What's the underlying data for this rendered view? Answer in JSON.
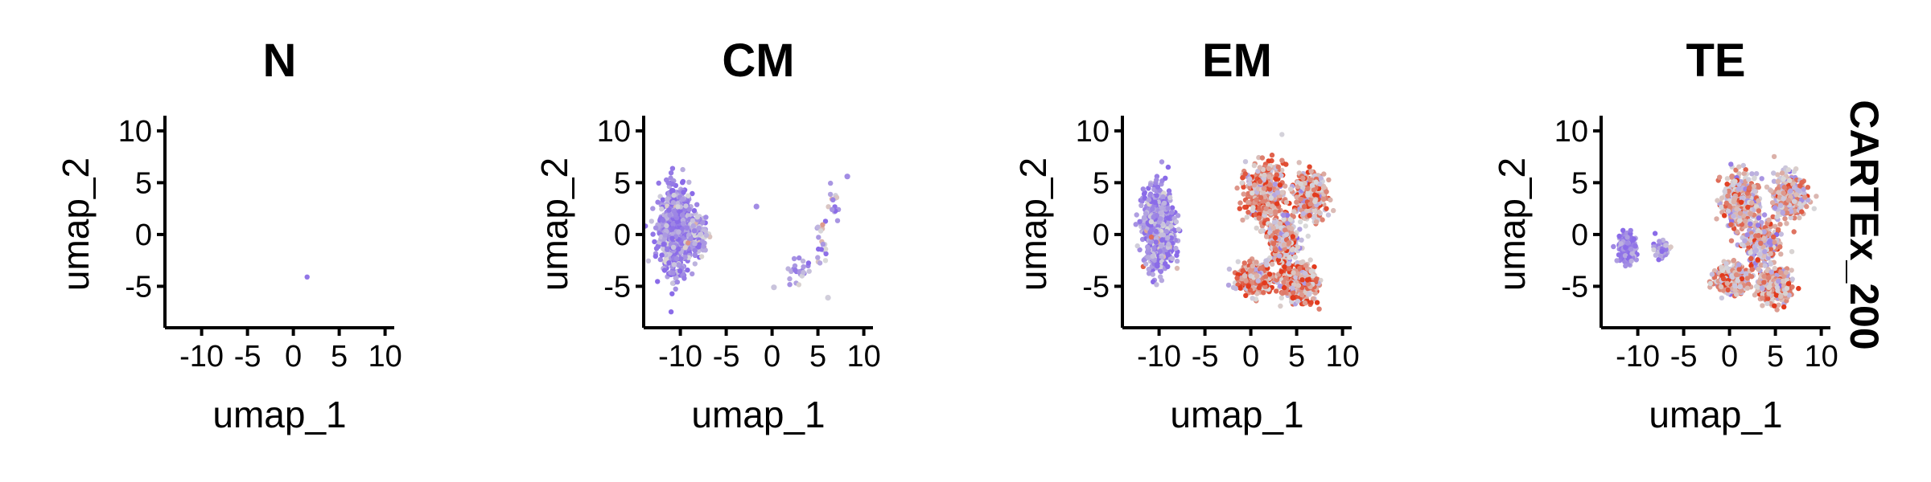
{
  "figure": {
    "strip_label": "CARTEx_200"
  },
  "colors": {
    "low": "#8a6be8",
    "mid": "#d9d9d9",
    "high": "#e23a1d"
  },
  "chart_data": [
    {
      "type": "scatter",
      "title": "N",
      "xlabel": "umap_1",
      "ylabel": "umap_2",
      "xlim": [
        -14,
        11
      ],
      "ylim": [
        -9,
        11
      ],
      "xticks": [
        -10,
        -5,
        0,
        5,
        10
      ],
      "yticks": [
        -5,
        0,
        5,
        10
      ],
      "xtick_labels": [
        "-10",
        "-5",
        "0",
        "5",
        "10"
      ],
      "ytick_labels": [
        "-5",
        "0",
        "5",
        "10"
      ],
      "color_scale": "CARTEx_200 score (low = purple, mid = grey, high = red)",
      "clusters": [
        {
          "cx": 1.5,
          "cy": -4.1,
          "sx": 0,
          "sy": 0,
          "n": 1,
          "mean": -0.9,
          "spread": 0
        }
      ],
      "points": []
    },
    {
      "type": "scatter",
      "title": "CM",
      "xlabel": "umap_1",
      "ylabel": "umap_2",
      "xlim": [
        -14,
        11
      ],
      "ylim": [
        -9,
        11
      ],
      "xticks": [
        -10,
        -5,
        0,
        5,
        10
      ],
      "yticks": [
        -5,
        0,
        5,
        10
      ],
      "xtick_labels": [
        "-10",
        "-5",
        "0",
        "5",
        "10"
      ],
      "ytick_labels": [
        "-5",
        "0",
        "5",
        "10"
      ],
      "clusters": [
        {
          "cx": -10.5,
          "cy": 0.5,
          "sx": 1.6,
          "sy": 3.6,
          "n": 900,
          "mean": -0.75,
          "spread": 0.35
        },
        {
          "cx": -8.2,
          "cy": 0.0,
          "sx": 0.9,
          "sy": 1.5,
          "n": 160,
          "mean": -0.6,
          "spread": 0.4
        },
        {
          "cx": 3.0,
          "cy": -3.5,
          "sx": 1.2,
          "sy": 1.0,
          "n": 25,
          "mean": -0.6,
          "spread": 0.35
        },
        {
          "cx": 5.5,
          "cy": -1.0,
          "sx": 0.6,
          "sy": 2.2,
          "n": 20,
          "mean": -0.3,
          "spread": 0.4
        },
        {
          "cx": 6.8,
          "cy": 3.0,
          "sx": 0.8,
          "sy": 1.8,
          "n": 15,
          "mean": -0.5,
          "spread": 0.35
        }
      ],
      "points": [
        {
          "x": -1.7,
          "y": 2.7,
          "v": -0.7
        },
        {
          "x": 8.2,
          "y": 5.6,
          "v": -0.7
        },
        {
          "x": 0.2,
          "y": -5.1,
          "v": -0.2
        },
        {
          "x": 6.1,
          "y": -6.1,
          "v": -0.1
        }
      ]
    },
    {
      "type": "scatter",
      "title": "EM",
      "xlabel": "umap_1",
      "ylabel": "umap_2",
      "xlim": [
        -14,
        11
      ],
      "ylim": [
        -9,
        11
      ],
      "xticks": [
        -10,
        -5,
        0,
        5,
        10
      ],
      "yticks": [
        -5,
        0,
        5,
        10
      ],
      "xtick_labels": [
        "-10",
        "-5",
        "0",
        "5",
        "10"
      ],
      "ytick_labels": [
        "-5",
        "0",
        "5",
        "10"
      ],
      "clusters": [
        {
          "cx": -10.0,
          "cy": 0.5,
          "sx": 1.5,
          "sy": 3.3,
          "n": 850,
          "mean": -0.65,
          "spread": 0.4
        },
        {
          "cx": 1.5,
          "cy": 4.0,
          "sx": 1.8,
          "sy": 2.4,
          "n": 500,
          "mean": 0.35,
          "spread": 0.45
        },
        {
          "cx": 6.5,
          "cy": 3.8,
          "sx": 1.5,
          "sy": 2.0,
          "n": 400,
          "mean": 0.3,
          "spread": 0.45
        },
        {
          "cx": 3.5,
          "cy": -0.5,
          "sx": 1.4,
          "sy": 1.8,
          "n": 450,
          "mean": 0.15,
          "spread": 0.5
        },
        {
          "cx": 0.5,
          "cy": -4.2,
          "sx": 1.7,
          "sy": 1.3,
          "n": 450,
          "mean": 0.4,
          "spread": 0.45
        },
        {
          "cx": 5.2,
          "cy": -4.7,
          "sx": 1.6,
          "sy": 1.5,
          "n": 450,
          "mean": 0.4,
          "spread": 0.45
        }
      ],
      "points": [
        {
          "x": 4.6,
          "y": -6.1,
          "v": 1.0
        }
      ]
    },
    {
      "type": "scatter",
      "title": "TE",
      "xlabel": "umap_1",
      "ylabel": "umap_2",
      "xlim": [
        -14,
        11
      ],
      "ylim": [
        -9,
        11
      ],
      "xticks": [
        -10,
        -5,
        0,
        5,
        10
      ],
      "yticks": [
        -5,
        0,
        5,
        10
      ],
      "xtick_labels": [
        "-10",
        "-5",
        "0",
        "5",
        "10"
      ],
      "ytick_labels": [
        "-5",
        "0",
        "5",
        "10"
      ],
      "clusters": [
        {
          "cx": -11.2,
          "cy": -1.3,
          "sx": 0.9,
          "sy": 1.3,
          "n": 180,
          "mean": -0.75,
          "spread": 0.3
        },
        {
          "cx": -7.5,
          "cy": -1.4,
          "sx": 0.9,
          "sy": 0.9,
          "n": 40,
          "mean": -0.6,
          "spread": 0.35
        },
        {
          "cx": 1.2,
          "cy": 3.2,
          "sx": 1.7,
          "sy": 2.3,
          "n": 450,
          "mean": 0.15,
          "spread": 0.45
        },
        {
          "cx": 6.5,
          "cy": 3.6,
          "sx": 1.5,
          "sy": 2.0,
          "n": 380,
          "mean": 0.1,
          "spread": 0.45
        },
        {
          "cx": 3.5,
          "cy": -0.8,
          "sx": 1.4,
          "sy": 1.7,
          "n": 420,
          "mean": 0.05,
          "spread": 0.5
        },
        {
          "cx": 0.3,
          "cy": -4.3,
          "sx": 1.6,
          "sy": 1.2,
          "n": 380,
          "mean": 0.25,
          "spread": 0.45
        },
        {
          "cx": 5.0,
          "cy": -5.0,
          "sx": 1.6,
          "sy": 1.4,
          "n": 400,
          "mean": 0.3,
          "spread": 0.45
        }
      ],
      "points": []
    }
  ]
}
